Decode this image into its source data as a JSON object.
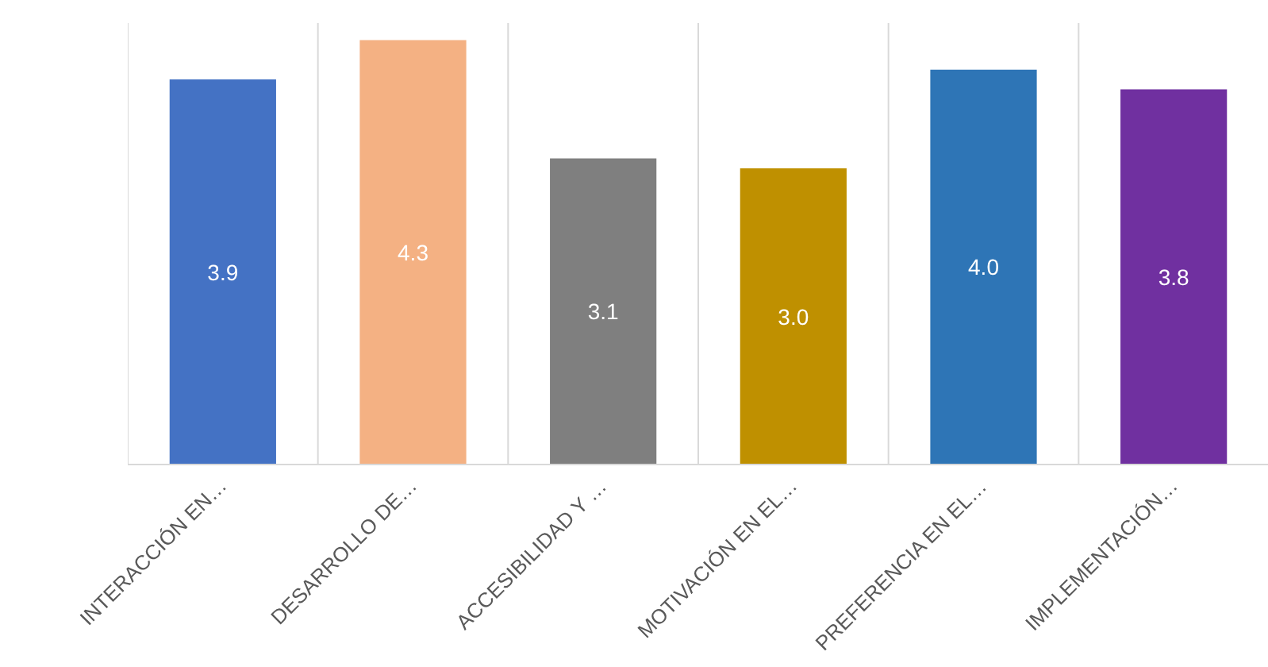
{
  "chart_data": {
    "type": "bar",
    "categories": [
      "INTERACCIÓN EN…",
      "DESARROLLO DE…",
      "ACCESIBILIDAD Y …",
      "MOTIVACIÓN EN EL…",
      "PREFERENCIA EN EL…",
      "IMPLEMENTACIÓN…"
    ],
    "values": [
      3.9,
      4.3,
      3.1,
      3.0,
      4.0,
      3.8
    ],
    "colors": [
      "#4472c4",
      "#f4b183",
      "#7f7f7f",
      "#bf9000",
      "#2e75b6",
      "#7030a0"
    ],
    "value_labels": [
      "3.9",
      "4.3",
      "3.1",
      "3.0",
      "4.0",
      "3.8"
    ],
    "tick_labels": "x",
    "grid": "x"
  }
}
